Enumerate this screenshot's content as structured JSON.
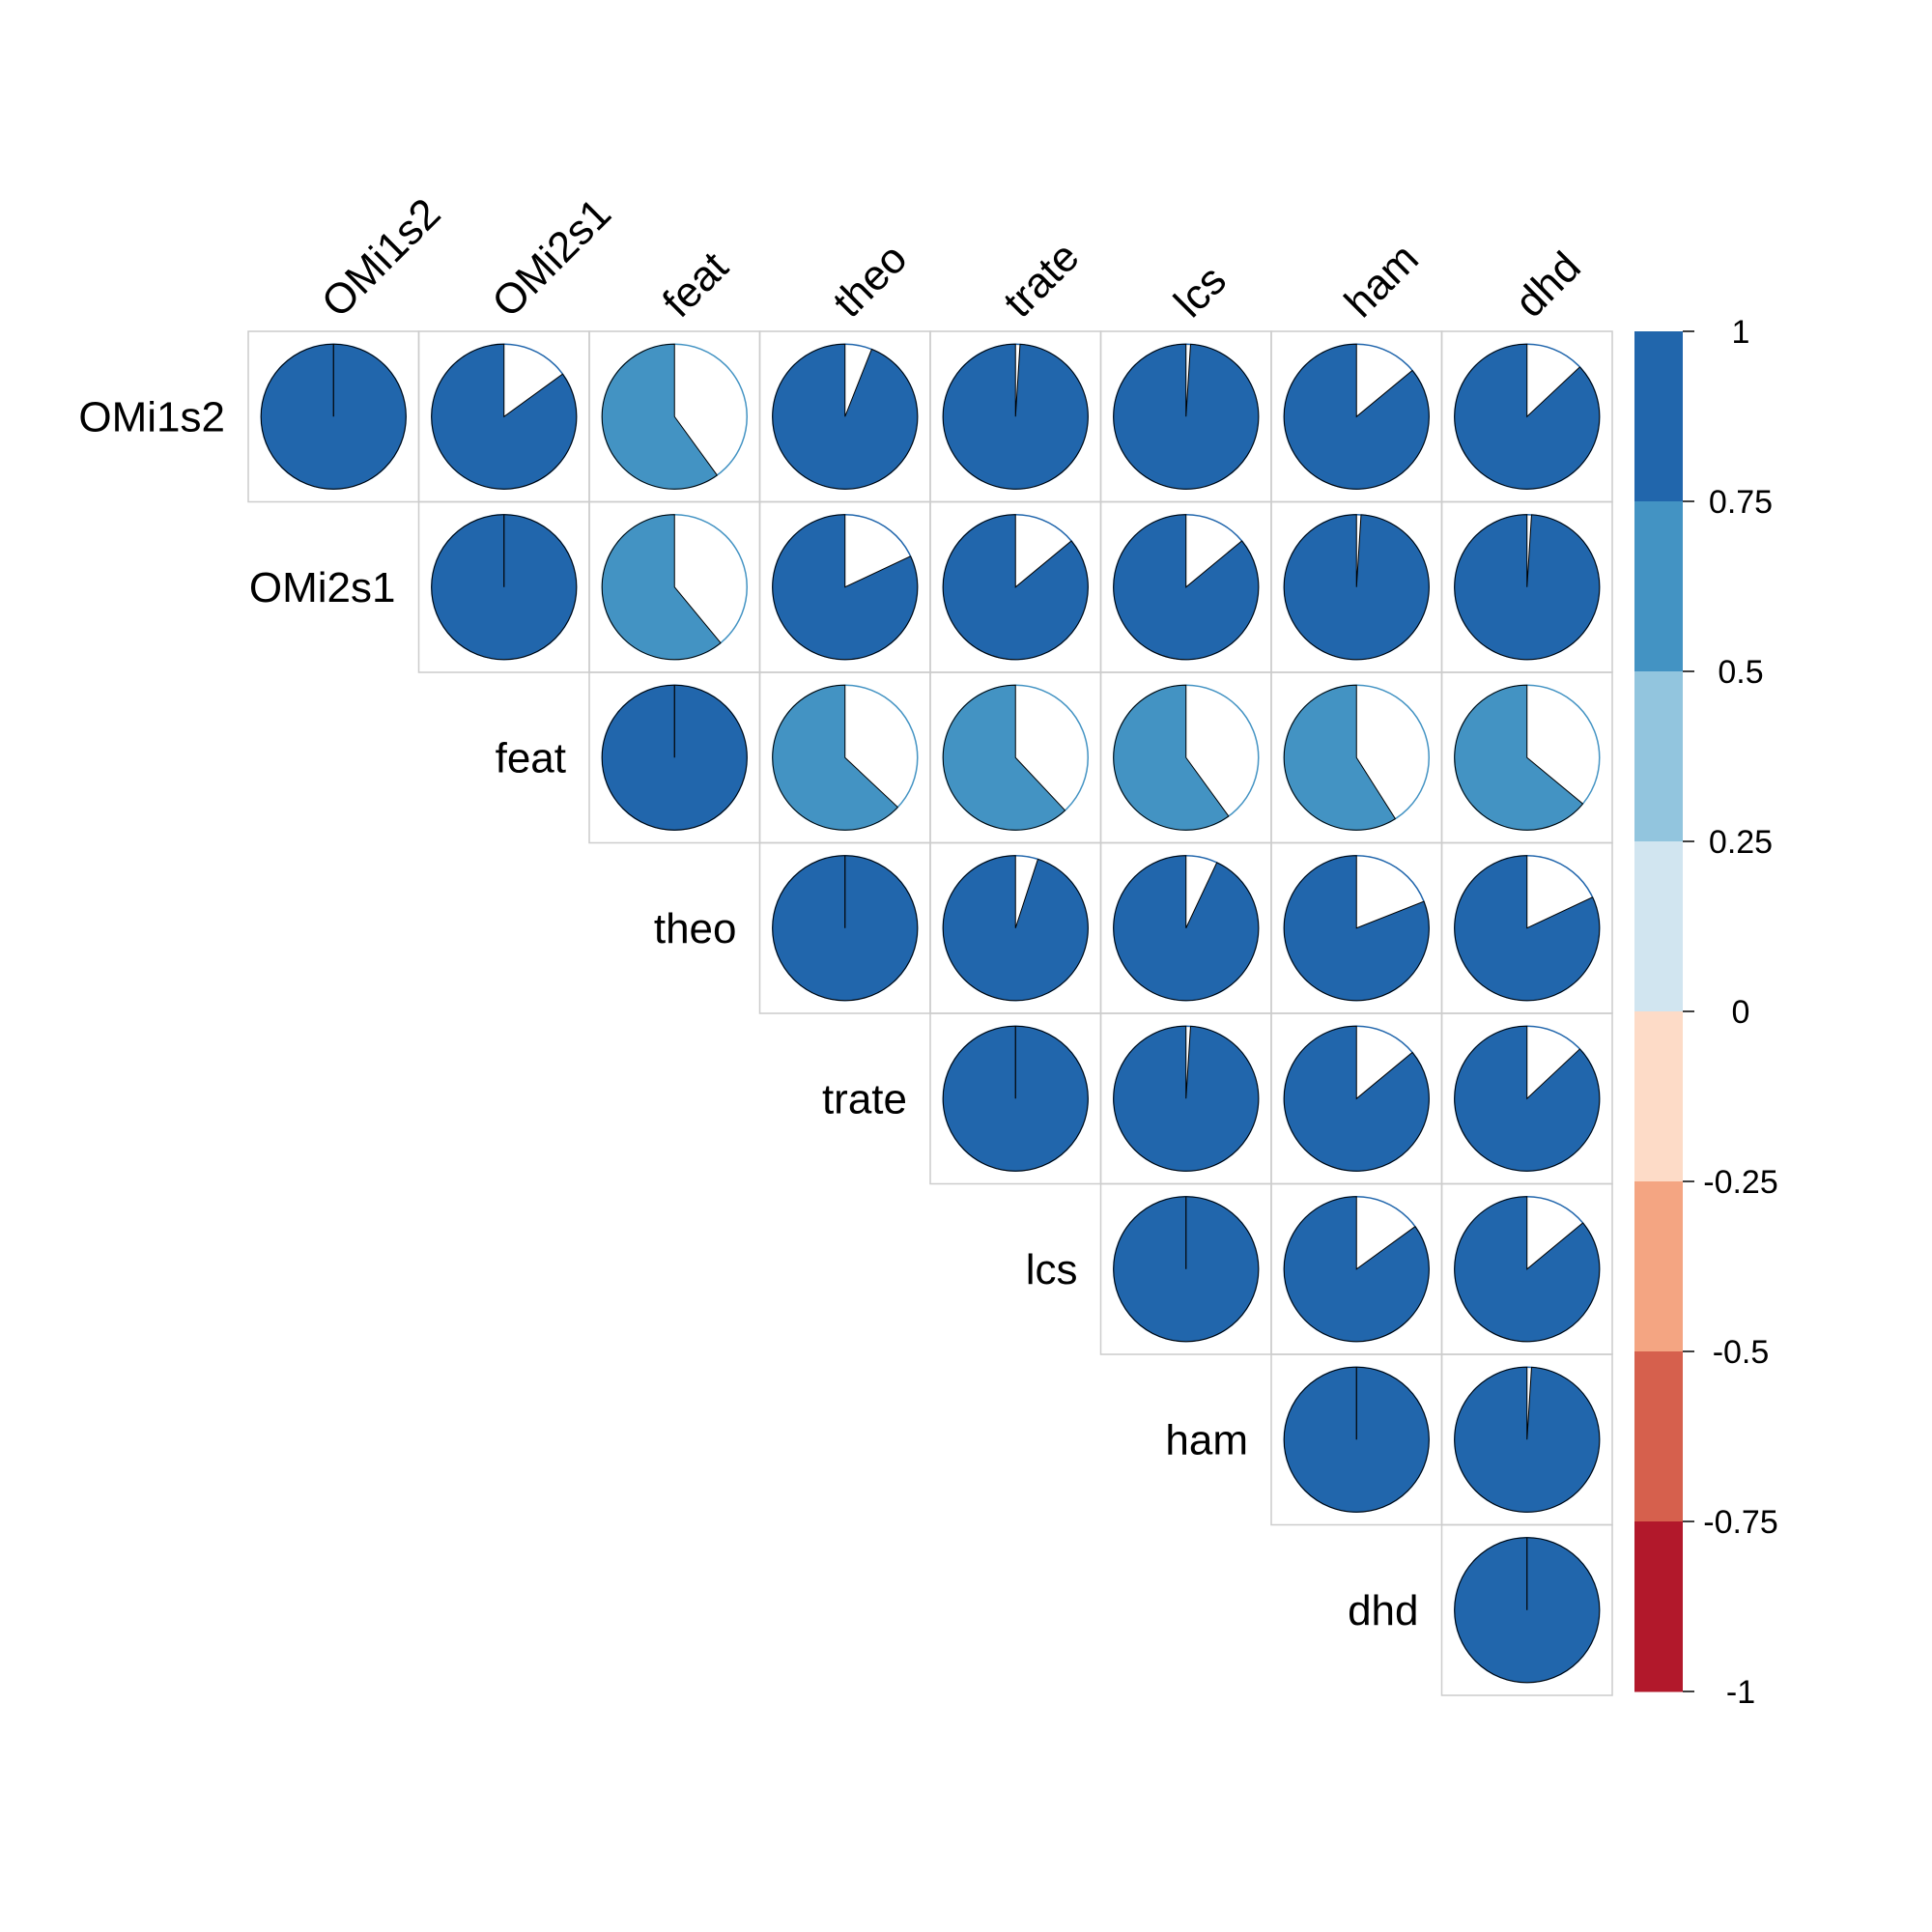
{
  "chart_data": {
    "type": "heatmap",
    "subtype": "correlation-pie-upper",
    "variables": [
      "OMi1s2",
      "OMi2s1",
      "feat",
      "theo",
      "trate",
      "lcs",
      "ham",
      "dhd"
    ],
    "matrix": [
      [
        1.0,
        0.85,
        0.6,
        0.94,
        0.99,
        0.99,
        0.86,
        0.87
      ],
      [
        0.85,
        1.0,
        0.61,
        0.82,
        0.86,
        0.86,
        0.99,
        0.99
      ],
      [
        0.6,
        0.61,
        1.0,
        0.63,
        0.62,
        0.6,
        0.59,
        0.64
      ],
      [
        0.94,
        0.82,
        0.63,
        1.0,
        0.95,
        0.93,
        0.81,
        0.82
      ],
      [
        0.99,
        0.86,
        0.62,
        0.95,
        1.0,
        0.99,
        0.86,
        0.87
      ],
      [
        0.99,
        0.86,
        0.6,
        0.93,
        0.99,
        1.0,
        0.85,
        0.86
      ],
      [
        0.86,
        0.99,
        0.59,
        0.81,
        0.86,
        0.85,
        1.0,
        0.99
      ],
      [
        0.87,
        0.99,
        0.64,
        0.82,
        0.87,
        0.86,
        0.99,
        1.0
      ]
    ],
    "colorbar": {
      "ticks": [
        "1",
        "0.75",
        "0.5",
        "0.25",
        "0",
        "-0.25",
        "-0.5",
        "-0.75",
        "-1"
      ],
      "bins_top_to_bottom": [
        "#2166AC",
        "#4393C3",
        "#92C5DE",
        "#D1E5F0",
        "#FDDBC7",
        "#F4A582",
        "#D6604D",
        "#B2182B"
      ]
    },
    "colors": {
      "grid": "#cccccc",
      "outline": "#000000"
    }
  }
}
